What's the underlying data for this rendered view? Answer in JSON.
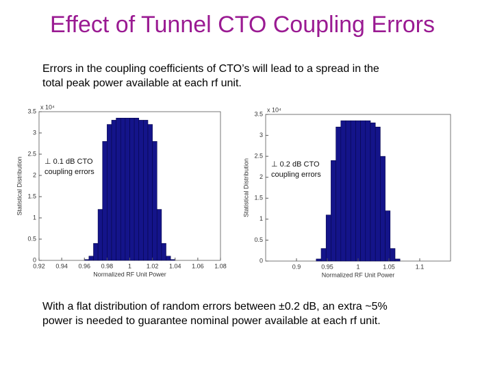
{
  "title": "Effect of Tunnel CTO Coupling Errors",
  "paragraphs": [
    [
      "Errors in the coupling coefficients of CTO’s will lead to a spread in the",
      "total peak power available at each rf unit."
    ],
    [
      "With a flat distribution of random errors between ±0.2 dB, an extra ~5%",
      "power is needed to guarantee nominal power available at each rf unit."
    ]
  ],
  "chart_data": [
    {
      "type": "histogram",
      "x_label": "Normalized RF Unit Power",
      "y_label": "Statistical Distribution",
      "y_multiplier": "x 10⁴",
      "annotation": [
        "⊥ 0.1 dB CTO",
        "coupling errors"
      ],
      "color": "#14148a",
      "bins": [
        0.96,
        0.964,
        0.968,
        0.972,
        0.976,
        0.98,
        0.984,
        0.988,
        0.992,
        0.996,
        1.0,
        1.004,
        1.008,
        1.012,
        1.016,
        1.02,
        1.024,
        1.028,
        1.032,
        1.036,
        1.04
      ],
      "counts": [
        0.02,
        0.1,
        0.4,
        1.2,
        2.8,
        3.2,
        3.3,
        3.35,
        3.35,
        3.35,
        3.35,
        3.35,
        3.3,
        3.3,
        3.2,
        2.8,
        1.2,
        0.4,
        0.1,
        0.02
      ],
      "xlim": [
        0.92,
        1.08
      ],
      "xticks": [
        0.92,
        0.94,
        0.96,
        0.98,
        1,
        1.02,
        1.04,
        1.06,
        1.08
      ],
      "ylim": [
        0,
        3.5
      ],
      "yticks": [
        0,
        0.5,
        1,
        1.5,
        2,
        2.5,
        3,
        3.5
      ]
    },
    {
      "type": "histogram",
      "x_label": "Normalized RF Unit Power",
      "y_label": "Statistical Distribution",
      "y_multiplier": "x 10⁴",
      "annotation": [
        "⊥ 0.2 dB CTO",
        "coupling errors"
      ],
      "color": "#14148a",
      "bins": [
        0.932,
        0.94,
        0.948,
        0.956,
        0.964,
        0.972,
        0.98,
        0.988,
        0.996,
        1.004,
        1.012,
        1.02,
        1.028,
        1.036,
        1.044,
        1.052,
        1.06,
        1.068
      ],
      "counts": [
        0.05,
        0.3,
        1.1,
        2.4,
        3.2,
        3.35,
        3.35,
        3.35,
        3.35,
        3.35,
        3.35,
        3.3,
        3.2,
        2.5,
        1.2,
        0.3,
        0.05
      ],
      "xlim": [
        0.85,
        1.15
      ],
      "xticks": [
        0.9,
        0.95,
        1,
        1.05,
        1.1
      ],
      "ylim": [
        0,
        3.5
      ],
      "yticks": [
        0,
        0.5,
        1,
        1.5,
        2,
        2.5,
        3,
        3.5
      ]
    }
  ]
}
